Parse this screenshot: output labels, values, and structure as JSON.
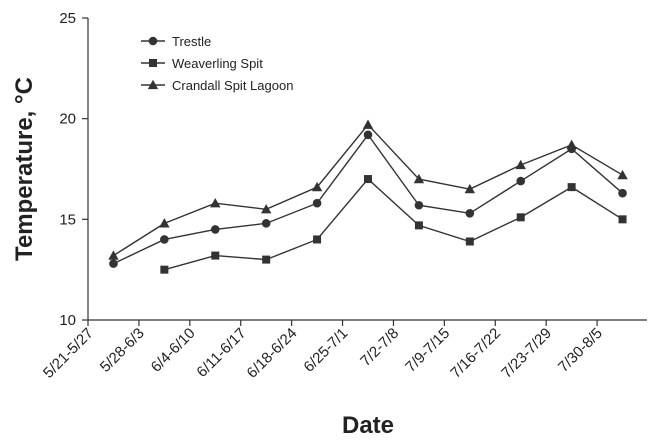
{
  "chart_data": {
    "type": "line",
    "categories": [
      "5/21-5/27",
      "5/28-6/3",
      "6/4-6/10",
      "6/11-6/17",
      "6/18-6/24",
      "6/25-7/1",
      "7/2-7/8",
      "7/9-7/15",
      "7/16-7/22",
      "7/23-7/29",
      "7/30-8/5"
    ],
    "series": [
      {
        "name": "Trestle",
        "marker": "circle",
        "values": [
          12.8,
          14.0,
          14.5,
          14.8,
          15.8,
          19.2,
          15.7,
          15.3,
          16.9,
          18.5,
          16.3
        ]
      },
      {
        "name": "Weaverling Spit",
        "marker": "square",
        "values": [
          null,
          12.5,
          13.2,
          13.0,
          14.0,
          17.0,
          14.7,
          13.9,
          15.1,
          16.6,
          15.0
        ]
      },
      {
        "name": "Crandall Spit Lagoon",
        "marker": "triangle",
        "values": [
          13.2,
          14.8,
          15.8,
          15.5,
          16.6,
          19.7,
          17.0,
          16.5,
          17.7,
          18.7,
          17.2
        ]
      }
    ],
    "xlabel": "Date",
    "ylabel": "Temperature, °C",
    "ylim": [
      10,
      25
    ],
    "yticks": [
      10,
      15,
      20,
      25
    ],
    "grid": false,
    "legend_position": "top-left",
    "line_color": "#333333"
  }
}
